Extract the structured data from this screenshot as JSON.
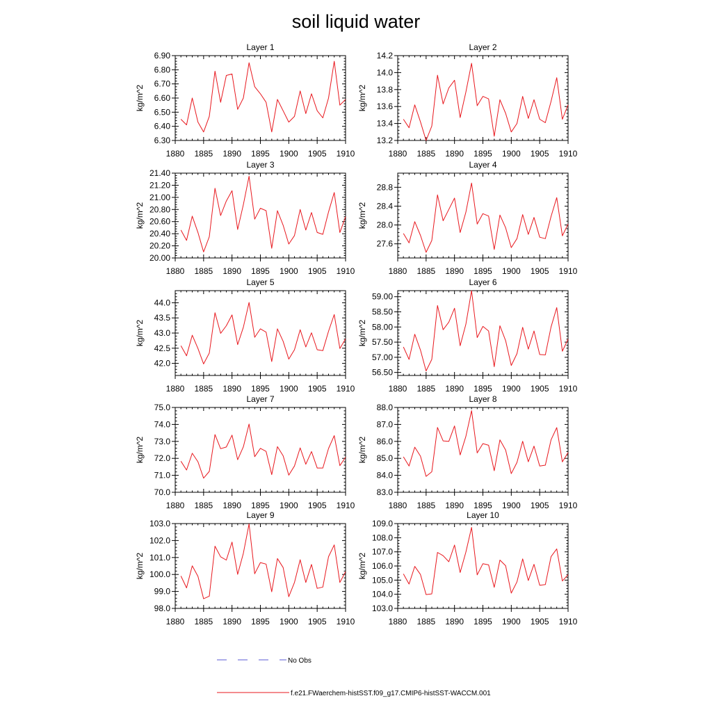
{
  "title": "soil liquid water",
  "legend": {
    "no_obs_label": "No Obs",
    "no_obs_color": "#5a5ad6",
    "model_label": "f.e21.FWaerchem-histSST.f09_g17.CMIP6-histSST-WACCM.001",
    "model_color": "#e8171d"
  },
  "chart_data": [
    {
      "type": "line",
      "title": "Layer 1",
      "ylabel": "kg/m^2",
      "xlim": [
        1880,
        1910
      ],
      "ylim": [
        6.3,
        6.9
      ],
      "x_ticks": [
        "1880",
        "1885",
        "1890",
        "1895",
        "1900",
        "1905",
        "1910"
      ],
      "y_ticks": [
        "6.30",
        "6.40",
        "6.50",
        "6.60",
        "6.70",
        "6.80",
        "6.90"
      ],
      "series": [
        {
          "values": [
            6.45,
            6.41,
            6.6,
            6.43,
            6.36,
            6.47,
            6.79,
            6.57,
            6.76,
            6.77,
            6.52,
            6.6,
            6.85,
            6.68,
            6.63,
            6.57,
            6.36,
            6.59,
            6.51,
            6.43,
            6.47,
            6.65,
            6.49,
            6.63,
            6.51,
            6.46,
            6.6,
            6.86,
            6.55,
            6.59
          ]
        }
      ]
    },
    {
      "type": "line",
      "title": "Layer 2",
      "ylabel": "kg/m^2",
      "xlim": [
        1880,
        1910
      ],
      "ylim": [
        13.2,
        14.2
      ],
      "x_ticks": [
        "1880",
        "1885",
        "1890",
        "1895",
        "1900",
        "1905",
        "1910"
      ],
      "y_ticks": [
        "13.2",
        "13.4",
        "13.6",
        "13.8",
        "14.0",
        "14.2"
      ],
      "series": [
        {
          "values": [
            13.45,
            13.35,
            13.62,
            13.42,
            13.2,
            13.37,
            13.97,
            13.63,
            13.82,
            13.91,
            13.47,
            13.77,
            14.11,
            13.61,
            13.72,
            13.69,
            13.25,
            13.68,
            13.52,
            13.3,
            13.4,
            13.72,
            13.46,
            13.68,
            13.45,
            13.41,
            13.66,
            13.94,
            13.45,
            13.62
          ]
        }
      ]
    },
    {
      "type": "line",
      "title": "Layer 3",
      "ylabel": "kg/m^2",
      "xlim": [
        1880,
        1910
      ],
      "ylim": [
        20.0,
        21.4
      ],
      "x_ticks": [
        "1880",
        "1885",
        "1890",
        "1895",
        "1900",
        "1905",
        "1910"
      ],
      "y_ticks": [
        "20.00",
        "20.20",
        "20.40",
        "20.60",
        "20.80",
        "21.00",
        "21.20",
        "21.40"
      ],
      "series": [
        {
          "values": [
            20.46,
            20.29,
            20.69,
            20.42,
            20.1,
            20.35,
            21.15,
            20.7,
            20.94,
            21.11,
            20.47,
            20.88,
            21.35,
            20.64,
            20.82,
            20.78,
            20.16,
            20.78,
            20.54,
            20.23,
            20.37,
            20.8,
            20.46,
            20.75,
            20.42,
            20.39,
            20.76,
            21.08,
            20.42,
            20.68
          ]
        }
      ]
    },
    {
      "type": "line",
      "title": "Layer 4",
      "ylabel": "kg/m^2",
      "xlim": [
        1880,
        1910
      ],
      "ylim": [
        27.3,
        29.1
      ],
      "x_ticks": [
        "1880",
        "1885",
        "1890",
        "1895",
        "1900",
        "1905",
        "1910"
      ],
      "y_ticks": [
        "27.6",
        "28.0",
        "28.4",
        "28.8"
      ],
      "series": [
        {
          "values": [
            27.82,
            27.62,
            28.07,
            27.78,
            27.42,
            27.67,
            28.64,
            28.09,
            28.33,
            28.57,
            27.84,
            28.27,
            28.89,
            28.02,
            28.24,
            28.19,
            27.48,
            28.21,
            27.94,
            27.52,
            27.71,
            28.22,
            27.8,
            28.16,
            27.74,
            27.71,
            28.18,
            28.58,
            27.77,
            28.02
          ]
        }
      ]
    },
    {
      "type": "line",
      "title": "Layer 5",
      "ylabel": "kg/m^2",
      "xlim": [
        1880,
        1910
      ],
      "ylim": [
        41.6,
        44.4
      ],
      "x_ticks": [
        "1880",
        "1885",
        "1890",
        "1895",
        "1900",
        "1905",
        "1910"
      ],
      "y_ticks": [
        "42.0",
        "42.5",
        "43.0",
        "43.5",
        "44.0"
      ],
      "series": [
        {
          "values": [
            42.58,
            42.25,
            42.93,
            42.49,
            41.98,
            42.34,
            43.67,
            42.99,
            43.24,
            43.6,
            42.62,
            43.19,
            44.01,
            42.86,
            43.14,
            43.03,
            42.06,
            43.14,
            42.73,
            42.14,
            42.45,
            43.11,
            42.54,
            43.01,
            42.45,
            42.42,
            43.06,
            43.61,
            42.49,
            42.81
          ]
        }
      ]
    },
    {
      "type": "line",
      "title": "Layer 6",
      "ylabel": "kg/m^2",
      "xlim": [
        1880,
        1910
      ],
      "ylim": [
        56.4,
        59.2
      ],
      "x_ticks": [
        "1880",
        "1885",
        "1890",
        "1895",
        "1900",
        "1905",
        "1910"
      ],
      "y_ticks": [
        "56.50",
        "57.00",
        "57.50",
        "58.00",
        "58.50",
        "59.00"
      ],
      "series": [
        {
          "values": [
            57.34,
            56.93,
            57.76,
            57.24,
            56.55,
            56.93,
            58.71,
            57.91,
            58.16,
            58.62,
            57.38,
            58.09,
            59.2,
            57.65,
            58.02,
            57.87,
            56.69,
            58.04,
            57.55,
            56.73,
            57.12,
            57.99,
            57.27,
            57.87,
            57.09,
            57.08,
            58.0,
            58.64,
            57.2,
            57.6
          ]
        }
      ]
    },
    {
      "type": "line",
      "title": "Layer 7",
      "ylabel": "kg/m^2",
      "xlim": [
        1880,
        1910
      ],
      "ylim": [
        70.0,
        75.0
      ],
      "x_ticks": [
        "1880",
        "1885",
        "1890",
        "1895",
        "1900",
        "1905",
        "1910"
      ],
      "y_ticks": [
        "70.0",
        "71.0",
        "72.0",
        "73.0",
        "74.0",
        "75.0"
      ],
      "series": [
        {
          "values": [
            71.83,
            71.31,
            72.3,
            71.8,
            70.83,
            71.23,
            73.4,
            72.57,
            72.67,
            73.37,
            71.92,
            72.68,
            74.02,
            72.1,
            72.59,
            72.41,
            71.04,
            72.69,
            72.15,
            71.01,
            71.55,
            72.62,
            71.65,
            72.4,
            71.43,
            71.43,
            72.58,
            73.34,
            71.57,
            72.07
          ]
        }
      ]
    },
    {
      "type": "line",
      "title": "Layer 8",
      "ylabel": "kg/m^2",
      "xlim": [
        1880,
        1910
      ],
      "ylim": [
        83.0,
        88.0
      ],
      "x_ticks": [
        "1880",
        "1885",
        "1890",
        "1895",
        "1900",
        "1905",
        "1910"
      ],
      "y_ticks": [
        "83.0",
        "84.0",
        "85.0",
        "86.0",
        "87.0",
        "88.0"
      ],
      "series": [
        {
          "values": [
            85.09,
            84.55,
            85.66,
            85.13,
            83.94,
            84.21,
            86.82,
            86.03,
            86.0,
            86.91,
            85.2,
            86.29,
            87.81,
            85.32,
            85.87,
            85.77,
            84.27,
            86.09,
            85.49,
            84.1,
            84.76,
            86.01,
            84.8,
            85.72,
            84.55,
            84.6,
            86.09,
            86.81,
            84.79,
            85.35
          ]
        }
      ]
    },
    {
      "type": "line",
      "title": "Layer 9",
      "ylabel": "kg/m^2",
      "xlim": [
        1880,
        1910
      ],
      "ylim": [
        98.0,
        103.0
      ],
      "x_ticks": [
        "1880",
        "1885",
        "1890",
        "1895",
        "1900",
        "1905",
        "1910"
      ],
      "y_ticks": [
        "98.0",
        "99.0",
        "100.0",
        "101.0",
        "102.0",
        "103.0"
      ],
      "series": [
        {
          "values": [
            99.91,
            99.21,
            100.51,
            99.89,
            98.57,
            98.72,
            101.67,
            101.04,
            100.85,
            101.91,
            100.01,
            101.25,
            102.98,
            100.04,
            100.7,
            100.61,
            98.98,
            100.94,
            100.41,
            98.69,
            99.53,
            100.87,
            99.53,
            100.59,
            99.18,
            99.26,
            101.05,
            101.74,
            99.53,
            100.17
          ]
        }
      ]
    },
    {
      "type": "line",
      "title": "Layer 10",
      "ylabel": "kg/m^2",
      "xlim": [
        1880,
        1910
      ],
      "ylim": [
        103.0,
        109.0
      ],
      "x_ticks": [
        "1880",
        "1885",
        "1890",
        "1895",
        "1900",
        "1905",
        "1910"
      ],
      "y_ticks": [
        "103.0",
        "104.0",
        "105.0",
        "106.0",
        "107.0",
        "108.0",
        "109.0"
      ],
      "series": [
        {
          "values": [
            105.44,
            104.72,
            105.97,
            105.4,
            103.98,
            104.03,
            106.96,
            106.73,
            106.3,
            107.48,
            105.54,
            106.98,
            108.73,
            105.37,
            106.16,
            106.08,
            104.49,
            106.42,
            106.02,
            104.08,
            104.88,
            106.5,
            104.97,
            106.12,
            104.64,
            104.68,
            106.66,
            107.21,
            104.94,
            105.39
          ]
        }
      ]
    }
  ]
}
